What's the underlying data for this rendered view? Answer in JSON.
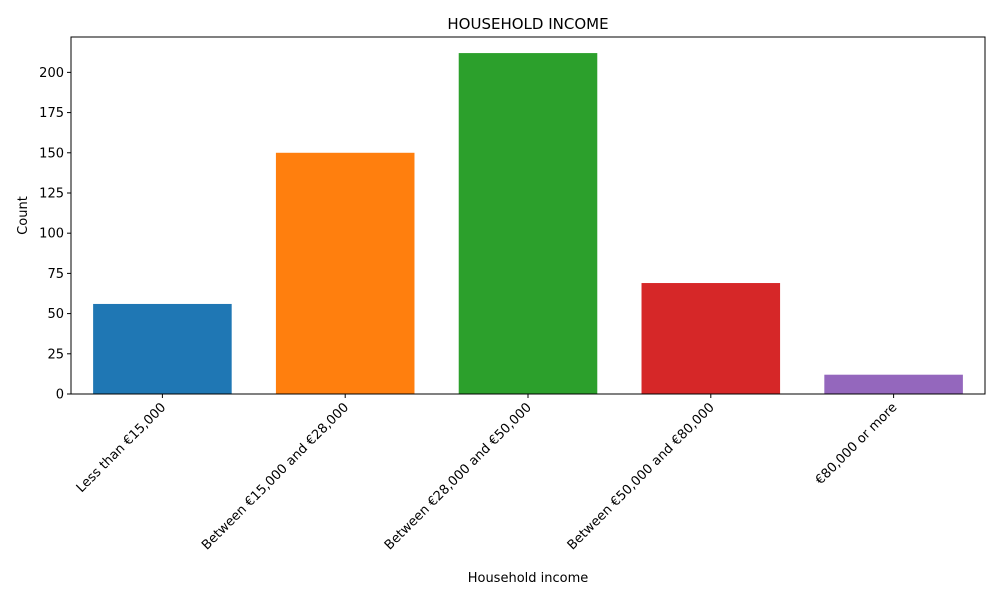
{
  "chart_data": {
    "type": "bar",
    "title": "HOUSEHOLD INCOME",
    "xlabel": "Household income",
    "ylabel": "Count",
    "categories": [
      "Less than €15,000",
      "Between €15,000 and €28,000",
      "Between €28,000 and €50,000",
      "Between €50,000 and €80,000",
      "€80,000 or more"
    ],
    "values": [
      56,
      150,
      212,
      69,
      12
    ],
    "colors": [
      "#1f77b4",
      "#ff7f0e",
      "#2ca02c",
      "#d62728",
      "#9467bd"
    ],
    "ylim": [
      0,
      222
    ],
    "yticks": [
      0,
      25,
      50,
      75,
      100,
      125,
      150,
      175,
      200
    ],
    "ytick_labels": [
      "0",
      "25",
      "50",
      "75",
      "100",
      "125",
      "150",
      "175",
      "200"
    ],
    "grid": false,
    "legend": "none"
  }
}
